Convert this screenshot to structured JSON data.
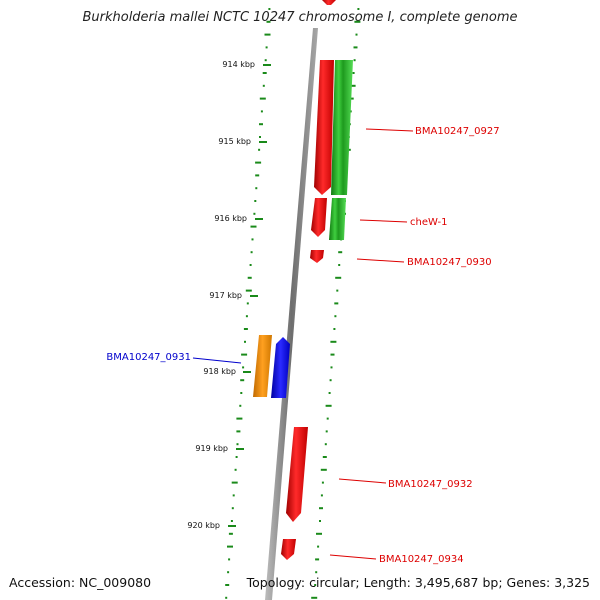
{
  "title": "Burkholderia mallei NCTC 10247 chromosome I, complete genome",
  "footer": {
    "accession": "Accession: NC_009080",
    "summary": "Topology: circular; Length: 3,495,687 bp; Genes: 3,325"
  },
  "ticks": [
    "914 kbp",
    "915 kbp",
    "916 kbp",
    "917 kbp",
    "918 kbp",
    "919 kbp",
    "920 kbp"
  ],
  "gene_labels": [
    {
      "id": "bma0927",
      "text": "BMA10247_0927",
      "color": "#dd0000"
    },
    {
      "id": "chew1",
      "text": "cheW-1",
      "color": "#dd0000"
    },
    {
      "id": "bma0930",
      "text": "BMA10247_0930",
      "color": "#dd0000"
    },
    {
      "id": "bma0931",
      "text": "BMA10247_0931",
      "color": "#0000cc"
    },
    {
      "id": "bma0932",
      "text": "BMA10247_0932",
      "color": "#dd0000"
    },
    {
      "id": "bma0934",
      "text": "BMA10247_0934",
      "color": "#dd0000"
    }
  ],
  "colors": {
    "backbone": "#8a8a8a",
    "gc_track": "#1a8a1a",
    "gene_red": "#ee1111",
    "gene_green": "#33bb33",
    "gene_orange": "#f08c00",
    "gene_blue": "#1111ee"
  }
}
